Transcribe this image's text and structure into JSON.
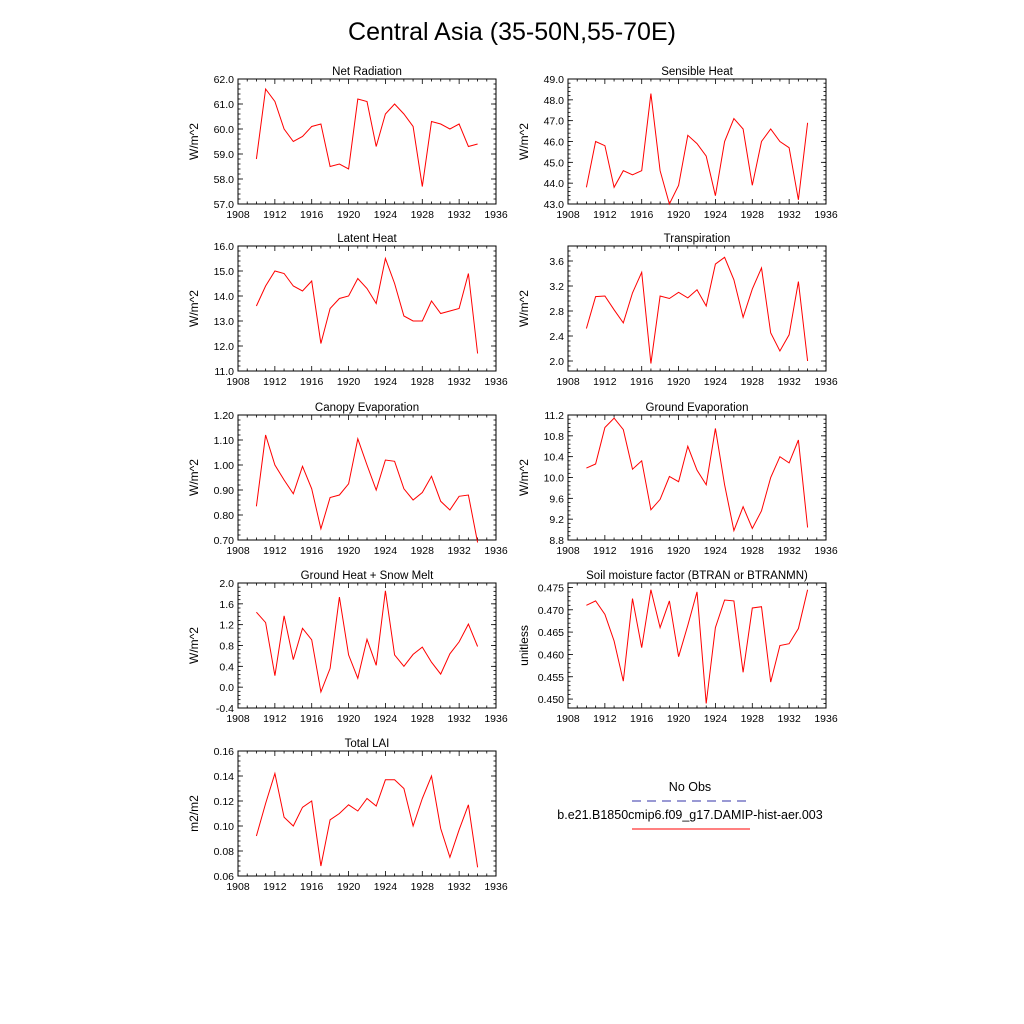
{
  "title": "Central Asia (35-50N,55-70E)",
  "legend": {
    "entries": [
      {
        "label": "No Obs",
        "color": "#3333aa",
        "dash": true
      },
      {
        "label": "b.e21.B1850cmip6.f09_g17.DAMIP-hist-aer.003",
        "color": "#ff0000",
        "dash": false
      }
    ]
  },
  "chart_data": [
    {
      "type": "line",
      "title": "Net Radiation",
      "ylabel": "W/m^2",
      "xlim": [
        1908,
        1936
      ],
      "ylim": [
        57.0,
        62.0
      ],
      "xticks": [
        1908,
        1912,
        1916,
        1920,
        1924,
        1928,
        1932,
        1936
      ],
      "yticks": [
        "57.0",
        "58.0",
        "59.0",
        "60.0",
        "61.0",
        "62.0"
      ],
      "x": [
        1910,
        1911,
        1912,
        1913,
        1914,
        1915,
        1916,
        1917,
        1918,
        1919,
        1920,
        1921,
        1922,
        1923,
        1924,
        1925,
        1926,
        1927,
        1928,
        1929,
        1930,
        1931,
        1932,
        1933,
        1934
      ],
      "series": [
        {
          "color": "#ff0000",
          "values": [
            58.8,
            61.6,
            61.1,
            60.0,
            59.5,
            59.7,
            60.1,
            60.2,
            58.5,
            58.6,
            58.4,
            61.2,
            61.1,
            59.3,
            60.6,
            61.0,
            60.6,
            60.1,
            57.7,
            60.3,
            60.2,
            60.0,
            60.2,
            59.3,
            59.4
          ]
        }
      ]
    },
    {
      "type": "line",
      "title": "Sensible Heat",
      "ylabel": "W/m^2",
      "xlim": [
        1908,
        1936
      ],
      "ylim": [
        43.0,
        49.0
      ],
      "xticks": [
        1908,
        1912,
        1916,
        1920,
        1924,
        1928,
        1932,
        1936
      ],
      "yticks": [
        "43.0",
        "44.0",
        "45.0",
        "46.0",
        "47.0",
        "48.0",
        "49.0"
      ],
      "x": [
        1910,
        1911,
        1912,
        1913,
        1914,
        1915,
        1916,
        1917,
        1918,
        1919,
        1920,
        1921,
        1922,
        1923,
        1924,
        1925,
        1926,
        1927,
        1928,
        1929,
        1930,
        1931,
        1932,
        1933,
        1934
      ],
      "series": [
        {
          "color": "#ff0000",
          "values": [
            43.8,
            46.0,
            45.8,
            43.8,
            44.6,
            44.4,
            44.6,
            48.3,
            44.6,
            43.0,
            43.9,
            46.3,
            45.9,
            45.3,
            43.4,
            46.0,
            47.1,
            46.6,
            43.9,
            46.0,
            46.6,
            46.0,
            45.7,
            43.2,
            46.9
          ]
        }
      ]
    },
    {
      "type": "line",
      "title": "Latent Heat",
      "ylabel": "W/m^2",
      "xlim": [
        1908,
        1936
      ],
      "ylim": [
        11.0,
        16.0
      ],
      "xticks": [
        1908,
        1912,
        1916,
        1920,
        1924,
        1928,
        1932,
        1936
      ],
      "yticks": [
        "11.0",
        "12.0",
        "13.0",
        "14.0",
        "15.0",
        "16.0"
      ],
      "x": [
        1910,
        1911,
        1912,
        1913,
        1914,
        1915,
        1916,
        1917,
        1918,
        1919,
        1920,
        1921,
        1922,
        1923,
        1924,
        1925,
        1926,
        1927,
        1928,
        1929,
        1930,
        1931,
        1932,
        1933,
        1934
      ],
      "series": [
        {
          "color": "#ff0000",
          "values": [
            13.6,
            14.4,
            15.0,
            14.9,
            14.4,
            14.2,
            14.6,
            12.1,
            13.5,
            13.9,
            14.0,
            14.7,
            14.3,
            13.7,
            15.5,
            14.5,
            13.2,
            13.0,
            13.0,
            13.8,
            13.3,
            13.4,
            13.5,
            14.9,
            11.7
          ]
        }
      ]
    },
    {
      "type": "line",
      "title": "Transpiration",
      "ylabel": "W/m^2",
      "xlim": [
        1908,
        1936
      ],
      "ylim": [
        1.84,
        3.84
      ],
      "xticks": [
        1908,
        1912,
        1916,
        1920,
        1924,
        1928,
        1932,
        1936
      ],
      "yticks": [
        "2.0",
        "2.4",
        "2.8",
        "3.2",
        "3.6"
      ],
      "ytick_values": [
        2.0,
        2.4,
        2.8,
        3.2,
        3.6
      ],
      "x": [
        1910,
        1911,
        1912,
        1913,
        1914,
        1915,
        1916,
        1917,
        1918,
        1919,
        1920,
        1921,
        1922,
        1923,
        1924,
        1925,
        1926,
        1927,
        1928,
        1929,
        1930,
        1931,
        1932,
        1933,
        1934
      ],
      "series": [
        {
          "color": "#ff0000",
          "values": [
            2.52,
            3.03,
            3.04,
            2.82,
            2.61,
            3.09,
            3.42,
            1.96,
            3.04,
            3.0,
            3.1,
            3.01,
            3.14,
            2.88,
            3.55,
            3.66,
            3.3,
            2.7,
            3.15,
            3.49,
            2.45,
            2.16,
            2.42,
            3.27,
            2.0
          ]
        }
      ]
    },
    {
      "type": "line",
      "title": "Canopy Evaporation",
      "ylabel": "W/m^2",
      "xlim": [
        1908,
        1936
      ],
      "ylim": [
        0.7,
        1.2
      ],
      "xticks": [
        1908,
        1912,
        1916,
        1920,
        1924,
        1928,
        1932,
        1936
      ],
      "yticks": [
        "0.70",
        "0.80",
        "0.90",
        "1.00",
        "1.10",
        "1.20"
      ],
      "x": [
        1910,
        1911,
        1912,
        1913,
        1914,
        1915,
        1916,
        1917,
        1918,
        1919,
        1920,
        1921,
        1922,
        1923,
        1924,
        1925,
        1926,
        1927,
        1928,
        1929,
        1930,
        1931,
        1932,
        1933,
        1934
      ],
      "series": [
        {
          "color": "#ff0000",
          "values": [
            0.835,
            1.12,
            1.0,
            0.94,
            0.885,
            0.995,
            0.905,
            0.745,
            0.87,
            0.88,
            0.925,
            1.105,
            1.0,
            0.9,
            1.02,
            1.015,
            0.905,
            0.86,
            0.89,
            0.955,
            0.855,
            0.82,
            0.875,
            0.88,
            0.69
          ]
        }
      ]
    },
    {
      "type": "line",
      "title": "Ground Evaporation",
      "ylabel": "W/m^2",
      "xlim": [
        1908,
        1936
      ],
      "ylim": [
        8.8,
        11.2
      ],
      "xticks": [
        1908,
        1912,
        1916,
        1920,
        1924,
        1928,
        1932,
        1936
      ],
      "yticks": [
        "8.8",
        "9.2",
        "9.6",
        "10.0",
        "10.4",
        "10.8",
        "11.2"
      ],
      "x": [
        1910,
        1911,
        1912,
        1913,
        1914,
        1915,
        1916,
        1917,
        1918,
        1919,
        1920,
        1921,
        1922,
        1923,
        1924,
        1925,
        1926,
        1927,
        1928,
        1929,
        1930,
        1931,
        1932,
        1933,
        1934
      ],
      "series": [
        {
          "color": "#ff0000",
          "values": [
            10.18,
            10.26,
            10.96,
            11.14,
            10.92,
            10.16,
            10.32,
            9.38,
            9.58,
            10.02,
            9.92,
            10.6,
            10.14,
            9.86,
            10.94,
            9.86,
            8.98,
            9.44,
            9.02,
            9.36,
            10.0,
            10.4,
            10.28,
            10.72,
            9.04
          ]
        }
      ]
    },
    {
      "type": "line",
      "title": "Ground Heat + Snow Melt",
      "ylabel": "W/m^2",
      "xlim": [
        1908,
        1936
      ],
      "ylim": [
        -0.4,
        2.0
      ],
      "xticks": [
        1908,
        1912,
        1916,
        1920,
        1924,
        1928,
        1932,
        1936
      ],
      "yticks": [
        "-0.4",
        "0.0",
        "0.4",
        "0.8",
        "1.2",
        "1.6",
        "2.0"
      ],
      "x": [
        1910,
        1911,
        1912,
        1913,
        1914,
        1915,
        1916,
        1917,
        1918,
        1919,
        1920,
        1921,
        1922,
        1923,
        1924,
        1925,
        1926,
        1927,
        1928,
        1929,
        1930,
        1931,
        1932,
        1933,
        1934
      ],
      "series": [
        {
          "color": "#ff0000",
          "values": [
            1.44,
            1.24,
            0.22,
            1.37,
            0.53,
            1.13,
            0.91,
            -0.09,
            0.36,
            1.73,
            0.62,
            0.17,
            0.92,
            0.42,
            1.85,
            0.62,
            0.4,
            0.63,
            0.77,
            0.48,
            0.25,
            0.64,
            0.87,
            1.21,
            0.78
          ]
        }
      ]
    },
    {
      "type": "line",
      "title": "Soil moisture factor (BTRAN or BTRANMN)",
      "ylabel": "unitless",
      "xlim": [
        1908,
        1936
      ],
      "ylim": [
        0.448,
        0.476
      ],
      "xticks": [
        1908,
        1912,
        1916,
        1920,
        1924,
        1928,
        1932,
        1936
      ],
      "yticks": [
        "0.450",
        "0.455",
        "0.460",
        "0.465",
        "0.470",
        "0.475"
      ],
      "ytick_values": [
        0.45,
        0.455,
        0.46,
        0.465,
        0.47,
        0.475
      ],
      "x": [
        1910,
        1911,
        1912,
        1913,
        1914,
        1915,
        1916,
        1917,
        1918,
        1919,
        1920,
        1921,
        1922,
        1923,
        1924,
        1925,
        1926,
        1927,
        1928,
        1929,
        1930,
        1931,
        1932,
        1933,
        1934
      ],
      "series": [
        {
          "color": "#ff0000",
          "values": [
            0.471,
            0.472,
            0.469,
            0.463,
            0.454,
            0.4725,
            0.4615,
            0.4745,
            0.466,
            0.472,
            0.4595,
            0.4665,
            0.474,
            0.449,
            0.466,
            0.4722,
            0.472,
            0.456,
            0.4704,
            0.4707,
            0.4538,
            0.462,
            0.4624,
            0.4658,
            0.4745
          ]
        }
      ]
    },
    {
      "type": "line",
      "title": "Total LAI",
      "ylabel": "m2/m2",
      "xlim": [
        1908,
        1936
      ],
      "ylim": [
        0.06,
        0.16
      ],
      "xticks": [
        1908,
        1912,
        1916,
        1920,
        1924,
        1928,
        1932,
        1936
      ],
      "yticks": [
        "0.06",
        "0.08",
        "0.10",
        "0.12",
        "0.14",
        "0.16"
      ],
      "x": [
        1910,
        1911,
        1912,
        1913,
        1914,
        1915,
        1916,
        1917,
        1918,
        1919,
        1920,
        1921,
        1922,
        1923,
        1924,
        1925,
        1926,
        1927,
        1928,
        1929,
        1930,
        1931,
        1932,
        1933,
        1934
      ],
      "series": [
        {
          "color": "#ff0000",
          "values": [
            0.092,
            0.118,
            0.142,
            0.107,
            0.1,
            0.115,
            0.12,
            0.068,
            0.105,
            0.11,
            0.117,
            0.112,
            0.122,
            0.116,
            0.137,
            0.137,
            0.13,
            0.1,
            0.122,
            0.14,
            0.098,
            0.075,
            0.097,
            0.117,
            0.067
          ]
        }
      ]
    }
  ]
}
